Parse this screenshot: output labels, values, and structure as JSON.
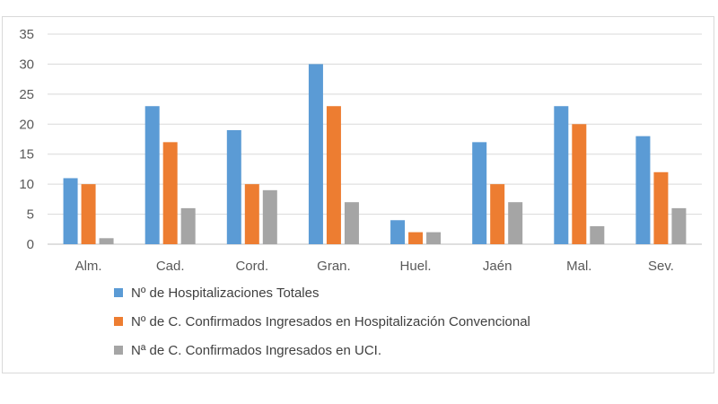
{
  "chart_data": {
    "type": "bar",
    "title": "",
    "xlabel": "",
    "ylabel": "",
    "categories": [
      "Alm.",
      "Cad.",
      "Cord.",
      "Gran.",
      "Huel.",
      "Jaén",
      "Mal.",
      "Sev."
    ],
    "series": [
      {
        "name": "Nº de Hospitalizaciones Totales",
        "color": "#5b9bd5",
        "values": [
          11,
          23,
          19,
          30,
          4,
          17,
          23,
          18
        ]
      },
      {
        "name": "Nº de C. Confirmados Ingresados en Hospitalización Convencional",
        "color": "#ed7d31",
        "values": [
          10,
          17,
          10,
          23,
          2,
          10,
          20,
          12
        ]
      },
      {
        "name": "Nª de C. Confirmados Ingresados en UCI.",
        "color": "#a5a5a5",
        "values": [
          1,
          6,
          9,
          7,
          2,
          7,
          3,
          6
        ]
      }
    ],
    "ylim": [
      0,
      35
    ],
    "yticks": [
      0,
      5,
      10,
      15,
      20,
      25,
      30,
      35
    ],
    "grid": true,
    "legend_position": "bottom"
  }
}
